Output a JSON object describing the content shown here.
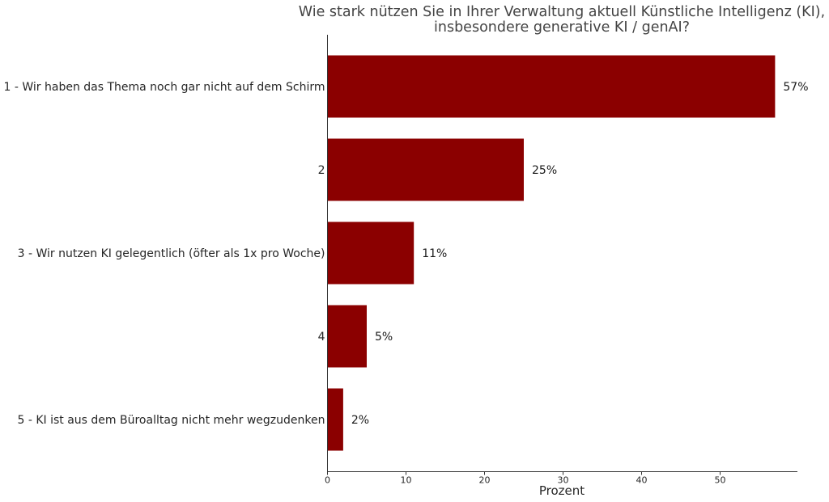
{
  "chart_data": {
    "type": "bar",
    "orientation": "horizontal",
    "title_lines": [
      "Wie stark nützen Sie in Ihrer Verwaltung aktuell Künstliche Intelligenz (KI),",
      "insbesondere generative KI / genAI?"
    ],
    "categories": [
      "1 - Wir haben das Thema noch gar nicht auf dem Schirm",
      "2",
      "3 - Wir nutzen KI gelegentlich (öfter als 1x pro Woche)",
      "4",
      "5 - KI ist aus dem Büroalltag nicht mehr wegzudenken"
    ],
    "values": [
      57,
      25,
      11,
      5,
      2
    ],
    "value_labels": [
      "57%",
      "25%",
      "11%",
      "5%",
      "2%"
    ],
    "xlabel": "Prozent",
    "ylabel": "",
    "xlim": [
      0,
      60
    ],
    "xticks": [
      0,
      10,
      20,
      30,
      40,
      50
    ],
    "grid": false,
    "legend": "none",
    "bar_color": "#8b0000"
  }
}
